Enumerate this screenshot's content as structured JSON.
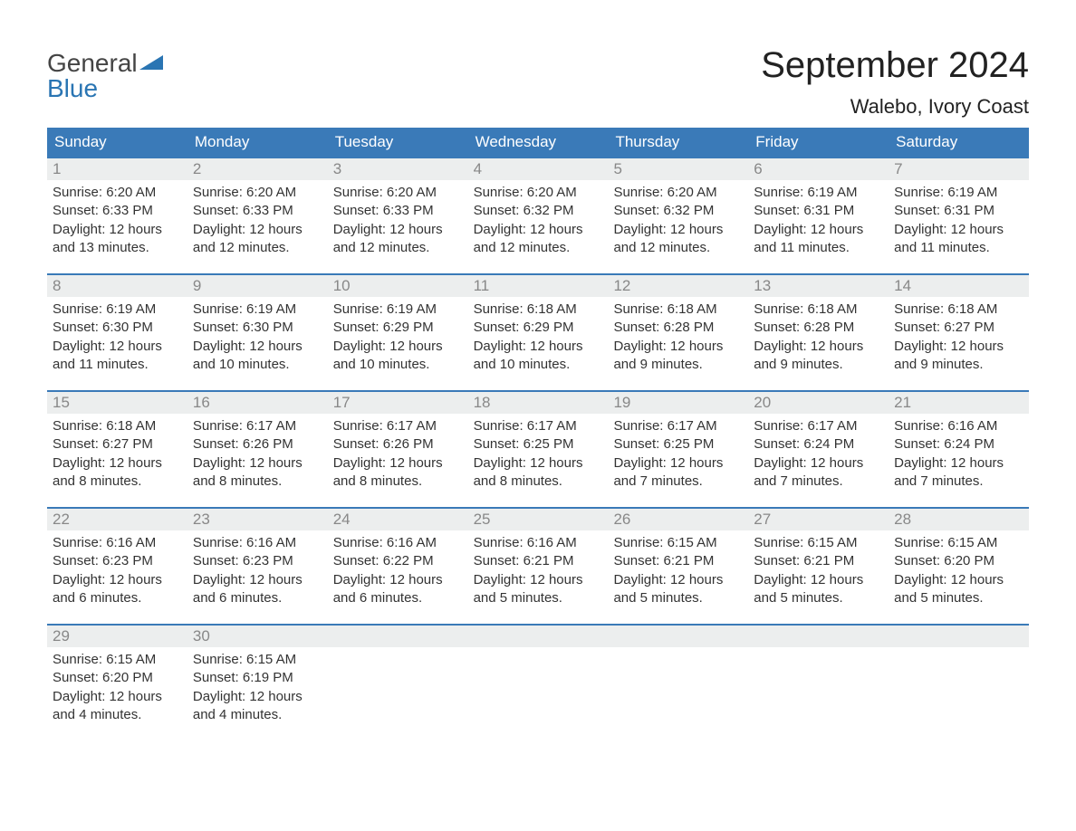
{
  "logo": {
    "text1": "General",
    "text2": "Blue"
  },
  "title": "September 2024",
  "location": "Walebo, Ivory Coast",
  "colors": {
    "header_bg": "#3a7ab8",
    "header_text": "#ffffff",
    "daynum_bg": "#eceeee",
    "daynum_text": "#888888",
    "row_border": "#3a7ab8",
    "body_text": "#333333",
    "logo_blue": "#2a75b3"
  },
  "weekdays": [
    "Sunday",
    "Monday",
    "Tuesday",
    "Wednesday",
    "Thursday",
    "Friday",
    "Saturday"
  ],
  "weeks": [
    [
      {
        "day": "1",
        "sunrise": "Sunrise: 6:20 AM",
        "sunset": "Sunset: 6:33 PM",
        "daylight1": "Daylight: 12 hours",
        "daylight2": "and 13 minutes."
      },
      {
        "day": "2",
        "sunrise": "Sunrise: 6:20 AM",
        "sunset": "Sunset: 6:33 PM",
        "daylight1": "Daylight: 12 hours",
        "daylight2": "and 12 minutes."
      },
      {
        "day": "3",
        "sunrise": "Sunrise: 6:20 AM",
        "sunset": "Sunset: 6:33 PM",
        "daylight1": "Daylight: 12 hours",
        "daylight2": "and 12 minutes."
      },
      {
        "day": "4",
        "sunrise": "Sunrise: 6:20 AM",
        "sunset": "Sunset: 6:32 PM",
        "daylight1": "Daylight: 12 hours",
        "daylight2": "and 12 minutes."
      },
      {
        "day": "5",
        "sunrise": "Sunrise: 6:20 AM",
        "sunset": "Sunset: 6:32 PM",
        "daylight1": "Daylight: 12 hours",
        "daylight2": "and 12 minutes."
      },
      {
        "day": "6",
        "sunrise": "Sunrise: 6:19 AM",
        "sunset": "Sunset: 6:31 PM",
        "daylight1": "Daylight: 12 hours",
        "daylight2": "and 11 minutes."
      },
      {
        "day": "7",
        "sunrise": "Sunrise: 6:19 AM",
        "sunset": "Sunset: 6:31 PM",
        "daylight1": "Daylight: 12 hours",
        "daylight2": "and 11 minutes."
      }
    ],
    [
      {
        "day": "8",
        "sunrise": "Sunrise: 6:19 AM",
        "sunset": "Sunset: 6:30 PM",
        "daylight1": "Daylight: 12 hours",
        "daylight2": "and 11 minutes."
      },
      {
        "day": "9",
        "sunrise": "Sunrise: 6:19 AM",
        "sunset": "Sunset: 6:30 PM",
        "daylight1": "Daylight: 12 hours",
        "daylight2": "and 10 minutes."
      },
      {
        "day": "10",
        "sunrise": "Sunrise: 6:19 AM",
        "sunset": "Sunset: 6:29 PM",
        "daylight1": "Daylight: 12 hours",
        "daylight2": "and 10 minutes."
      },
      {
        "day": "11",
        "sunrise": "Sunrise: 6:18 AM",
        "sunset": "Sunset: 6:29 PM",
        "daylight1": "Daylight: 12 hours",
        "daylight2": "and 10 minutes."
      },
      {
        "day": "12",
        "sunrise": "Sunrise: 6:18 AM",
        "sunset": "Sunset: 6:28 PM",
        "daylight1": "Daylight: 12 hours",
        "daylight2": "and 9 minutes."
      },
      {
        "day": "13",
        "sunrise": "Sunrise: 6:18 AM",
        "sunset": "Sunset: 6:28 PM",
        "daylight1": "Daylight: 12 hours",
        "daylight2": "and 9 minutes."
      },
      {
        "day": "14",
        "sunrise": "Sunrise: 6:18 AM",
        "sunset": "Sunset: 6:27 PM",
        "daylight1": "Daylight: 12 hours",
        "daylight2": "and 9 minutes."
      }
    ],
    [
      {
        "day": "15",
        "sunrise": "Sunrise: 6:18 AM",
        "sunset": "Sunset: 6:27 PM",
        "daylight1": "Daylight: 12 hours",
        "daylight2": "and 8 minutes."
      },
      {
        "day": "16",
        "sunrise": "Sunrise: 6:17 AM",
        "sunset": "Sunset: 6:26 PM",
        "daylight1": "Daylight: 12 hours",
        "daylight2": "and 8 minutes."
      },
      {
        "day": "17",
        "sunrise": "Sunrise: 6:17 AM",
        "sunset": "Sunset: 6:26 PM",
        "daylight1": "Daylight: 12 hours",
        "daylight2": "and 8 minutes."
      },
      {
        "day": "18",
        "sunrise": "Sunrise: 6:17 AM",
        "sunset": "Sunset: 6:25 PM",
        "daylight1": "Daylight: 12 hours",
        "daylight2": "and 8 minutes."
      },
      {
        "day": "19",
        "sunrise": "Sunrise: 6:17 AM",
        "sunset": "Sunset: 6:25 PM",
        "daylight1": "Daylight: 12 hours",
        "daylight2": "and 7 minutes."
      },
      {
        "day": "20",
        "sunrise": "Sunrise: 6:17 AM",
        "sunset": "Sunset: 6:24 PM",
        "daylight1": "Daylight: 12 hours",
        "daylight2": "and 7 minutes."
      },
      {
        "day": "21",
        "sunrise": "Sunrise: 6:16 AM",
        "sunset": "Sunset: 6:24 PM",
        "daylight1": "Daylight: 12 hours",
        "daylight2": "and 7 minutes."
      }
    ],
    [
      {
        "day": "22",
        "sunrise": "Sunrise: 6:16 AM",
        "sunset": "Sunset: 6:23 PM",
        "daylight1": "Daylight: 12 hours",
        "daylight2": "and 6 minutes."
      },
      {
        "day": "23",
        "sunrise": "Sunrise: 6:16 AM",
        "sunset": "Sunset: 6:23 PM",
        "daylight1": "Daylight: 12 hours",
        "daylight2": "and 6 minutes."
      },
      {
        "day": "24",
        "sunrise": "Sunrise: 6:16 AM",
        "sunset": "Sunset: 6:22 PM",
        "daylight1": "Daylight: 12 hours",
        "daylight2": "and 6 minutes."
      },
      {
        "day": "25",
        "sunrise": "Sunrise: 6:16 AM",
        "sunset": "Sunset: 6:21 PM",
        "daylight1": "Daylight: 12 hours",
        "daylight2": "and 5 minutes."
      },
      {
        "day": "26",
        "sunrise": "Sunrise: 6:15 AM",
        "sunset": "Sunset: 6:21 PM",
        "daylight1": "Daylight: 12 hours",
        "daylight2": "and 5 minutes."
      },
      {
        "day": "27",
        "sunrise": "Sunrise: 6:15 AM",
        "sunset": "Sunset: 6:21 PM",
        "daylight1": "Daylight: 12 hours",
        "daylight2": "and 5 minutes."
      },
      {
        "day": "28",
        "sunrise": "Sunrise: 6:15 AM",
        "sunset": "Sunset: 6:20 PM",
        "daylight1": "Daylight: 12 hours",
        "daylight2": "and 5 minutes."
      }
    ],
    [
      {
        "day": "29",
        "sunrise": "Sunrise: 6:15 AM",
        "sunset": "Sunset: 6:20 PM",
        "daylight1": "Daylight: 12 hours",
        "daylight2": "and 4 minutes."
      },
      {
        "day": "30",
        "sunrise": "Sunrise: 6:15 AM",
        "sunset": "Sunset: 6:19 PM",
        "daylight1": "Daylight: 12 hours",
        "daylight2": "and 4 minutes."
      },
      {
        "day": "",
        "empty": true
      },
      {
        "day": "",
        "empty": true
      },
      {
        "day": "",
        "empty": true
      },
      {
        "day": "",
        "empty": true
      },
      {
        "day": "",
        "empty": true
      }
    ]
  ]
}
